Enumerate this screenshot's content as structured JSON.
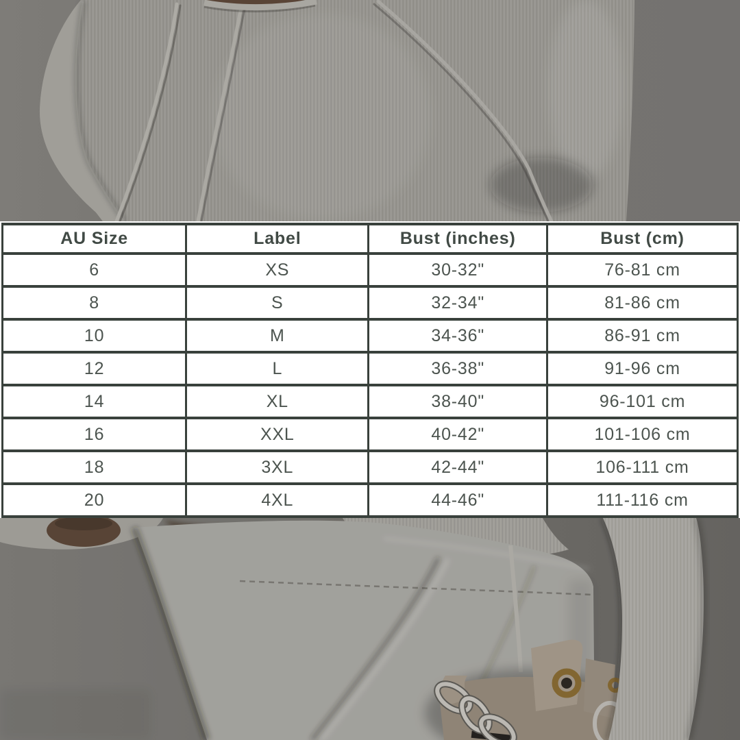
{
  "table": {
    "headers": [
      "AU Size",
      "Label",
      "Bust (inches)",
      "Bust (cm)"
    ],
    "rows": [
      [
        "6",
        "XS",
        "30-32\"",
        "76-81 cm"
      ],
      [
        "8",
        "S",
        "32-34\"",
        "81-86 cm"
      ],
      [
        "10",
        "M",
        "34-36\"",
        "86-91 cm"
      ],
      [
        "12",
        "L",
        "36-38\"",
        "91-96 cm"
      ],
      [
        "14",
        "XL",
        "38-40\"",
        "96-101 cm"
      ],
      [
        "16",
        "XXL",
        "40-42\"",
        "101-106 cm"
      ],
      [
        "18",
        "3XL",
        "42-44\"",
        "106-111 cm"
      ],
      [
        "20",
        "4XL",
        "44-46\"",
        "111-116 cm"
      ]
    ]
  },
  "colors": {
    "table_background": "#ffffff",
    "table_border": "#39413c",
    "header_text": "#414a45",
    "cell_text": "#4c544f"
  }
}
